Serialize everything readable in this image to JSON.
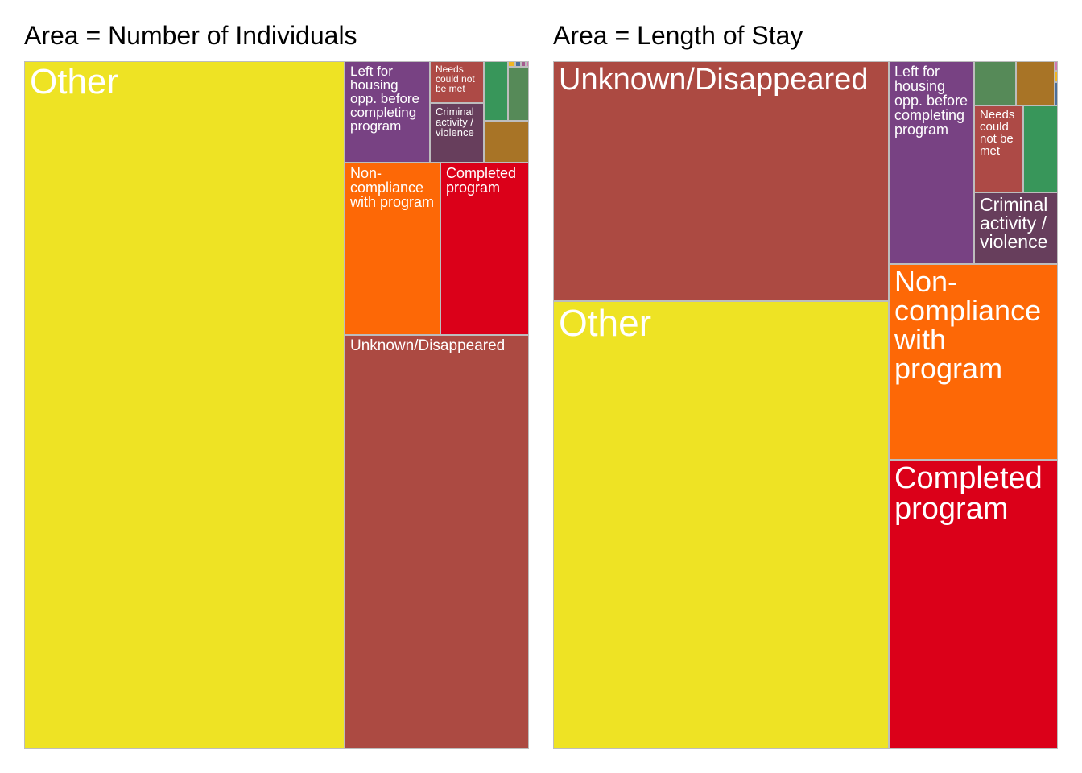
{
  "chart_data": [
    {
      "type": "treemap",
      "title": "Area = Number of Individuals",
      "tiles": [
        {
          "label": "Other",
          "color": "#eee324"
        },
        {
          "label": "Left for housing opp. before completing program",
          "color": "#784283"
        },
        {
          "label": "Needs could not be met",
          "color": "#ad4a46"
        },
        {
          "label": "Criminal activity / violence",
          "color": "#673e5c"
        },
        {
          "label": "",
          "color": "#38965a"
        },
        {
          "label": "",
          "color": "#568a58"
        },
        {
          "label": "",
          "color": "#a87426"
        },
        {
          "label": "",
          "color": "#f0b624"
        },
        {
          "label": "",
          "color": "#4b6f9b"
        },
        {
          "label": "",
          "color": "#a45c8e"
        },
        {
          "label": "",
          "color": "#d178b0"
        },
        {
          "label": "Non-compliance with program",
          "color": "#fd6806"
        },
        {
          "label": "Completed program",
          "color": "#db0019"
        },
        {
          "label": "Unknown/Disappeared",
          "color": "#ac4a42"
        }
      ]
    },
    {
      "type": "treemap",
      "title": "Area = Length of Stay",
      "tiles": [
        {
          "label": "Unknown/Disappeared",
          "color": "#ac4a42"
        },
        {
          "label": "Other",
          "color": "#eee324"
        },
        {
          "label": "Left for housing opp. before completing program",
          "color": "#784283"
        },
        {
          "label": "",
          "color": "#568a58"
        },
        {
          "label": "",
          "color": "#a87426"
        },
        {
          "label": "",
          "color": "#d178b0"
        },
        {
          "label": "",
          "color": "#f0b624"
        },
        {
          "label": "",
          "color": "#4b6f9b"
        },
        {
          "label": "Needs could not be met",
          "color": "#ad4a46"
        },
        {
          "label": "",
          "color": "#38965a"
        },
        {
          "label": "Criminal activity / violence",
          "color": "#673e5c"
        },
        {
          "label": "Non-compliance with program",
          "color": "#fd6806"
        },
        {
          "label": "Completed program",
          "color": "#db0019"
        }
      ]
    }
  ]
}
